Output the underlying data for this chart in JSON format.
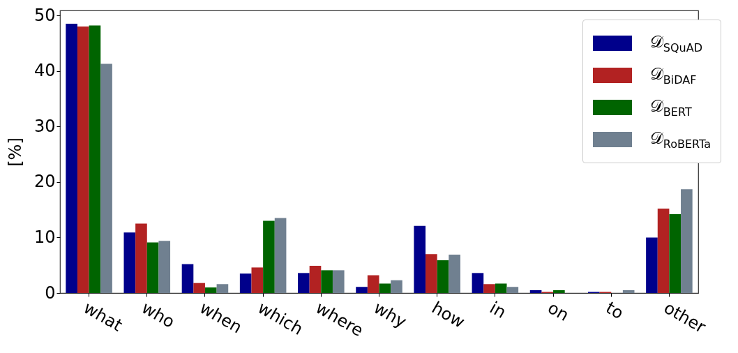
{
  "chart_data": {
    "type": "bar",
    "ylabel": "[%]",
    "categories": [
      "what",
      "who",
      "when",
      "which",
      "where",
      "why",
      "how",
      "in",
      "on",
      "to",
      "other"
    ],
    "series": [
      {
        "name": "𝒟$_{SQuAD}$",
        "color": "#00008b",
        "values": [
          48.5,
          10.9,
          5.2,
          3.5,
          3.6,
          1.1,
          12.1,
          3.6,
          0.5,
          0.2,
          10.0
        ]
      },
      {
        "name": "𝒟$_{BiDAF}$",
        "color": "#b22222",
        "values": [
          48.0,
          12.5,
          1.8,
          4.6,
          4.9,
          3.2,
          7.0,
          1.6,
          0.2,
          0.2,
          15.2
        ]
      },
      {
        "name": "𝒟$_{BERT}$",
        "color": "#006400",
        "values": [
          48.2,
          9.1,
          1.0,
          13.0,
          4.1,
          1.7,
          5.9,
          1.7,
          0.5,
          0.0,
          14.2
        ]
      },
      {
        "name": "𝒟$_{RoBERTa}$",
        "color": "#708090",
        "values": [
          41.3,
          9.4,
          1.6,
          13.5,
          4.1,
          2.3,
          6.9,
          1.1,
          0.0,
          0.5,
          18.7
        ]
      }
    ],
    "ylim": [
      0,
      50.9
    ],
    "yticks": [
      0,
      10,
      20,
      30,
      40,
      50
    ],
    "grid": false,
    "legend": "top right"
  }
}
